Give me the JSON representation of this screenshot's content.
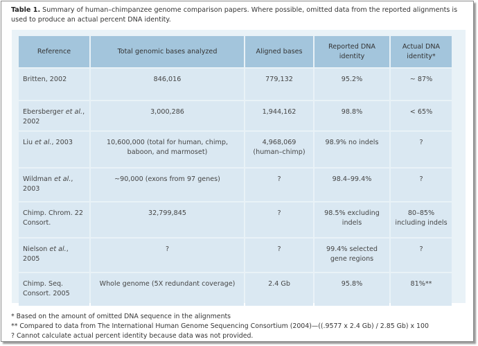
{
  "caption": {
    "label": "Table 1.",
    "text": "Summary of human–chimpanzee genome comparison papers. Where possible, omitted data from the reported alignments is used to produce an actual percent DNA identity."
  },
  "headers": [
    "Reference",
    "Total genomic bases analyzed",
    "Aligned bases",
    "Reported DNA identity",
    "Actual DNA identity*"
  ],
  "rows": [
    {
      "ref_a": "Britten, 2002",
      "ref_it": "",
      "ref_b": "",
      "bases": "846,016",
      "aligned": "779,132",
      "reported": "95.2%",
      "actual": "~ 87%"
    },
    {
      "ref_a": "Ebersberger ",
      "ref_it": "et al.",
      "ref_b": ", 2002",
      "bases": "3,000,286",
      "aligned": "1,944,162",
      "reported": "98.8%",
      "actual": "< 65%"
    },
    {
      "ref_a": "Liu ",
      "ref_it": "et al.",
      "ref_b": ", 2003",
      "bases": "10,600,000 (total for human, chimp, baboon, and marmoset)",
      "aligned": "4,968,069 (human–chimp)",
      "reported": "98.9% no indels",
      "actual": "?"
    },
    {
      "ref_a": "Wildman ",
      "ref_it": "et al.",
      "ref_b": ", 2003",
      "bases": "~90,000 (exons from 97 genes)",
      "aligned": "?",
      "reported": "98.4–99.4%",
      "actual": "?"
    },
    {
      "ref_a": "Chimp. Chrom. 22 Consort.",
      "ref_it": "",
      "ref_b": "",
      "bases": "32,799,845",
      "aligned": "?",
      "reported": "98.5% excluding indels",
      "actual": "80–85% including indels"
    },
    {
      "ref_a": "Nielson ",
      "ref_it": "et al.",
      "ref_b": ", 2005",
      "bases": "?",
      "aligned": "?",
      "reported": "99.4% selected gene regions",
      "actual": "?"
    },
    {
      "ref_a": "Chimp. Seq. Consort. 2005",
      "ref_it": "",
      "ref_b": "",
      "bases": "Whole genome (5X redundant coverage)",
      "aligned": "2.4 Gb",
      "reported": "95.8%",
      "actual": "81%**"
    }
  ],
  "notes": [
    "* Based on the amount of omitted DNA sequence in the alignments",
    "** Compared to data from The International Human Genome Sequencing Consortium (2004)—((.9577 x 2.4 Gb) / 2.85 Gb) x 100",
    "? Cannot calculate actual percent identity because data was not provided."
  ],
  "colors": {
    "header_bg": "#a3c5dc",
    "cell_bg": "#dae8f2",
    "table_bg": "#e9f2f7"
  }
}
